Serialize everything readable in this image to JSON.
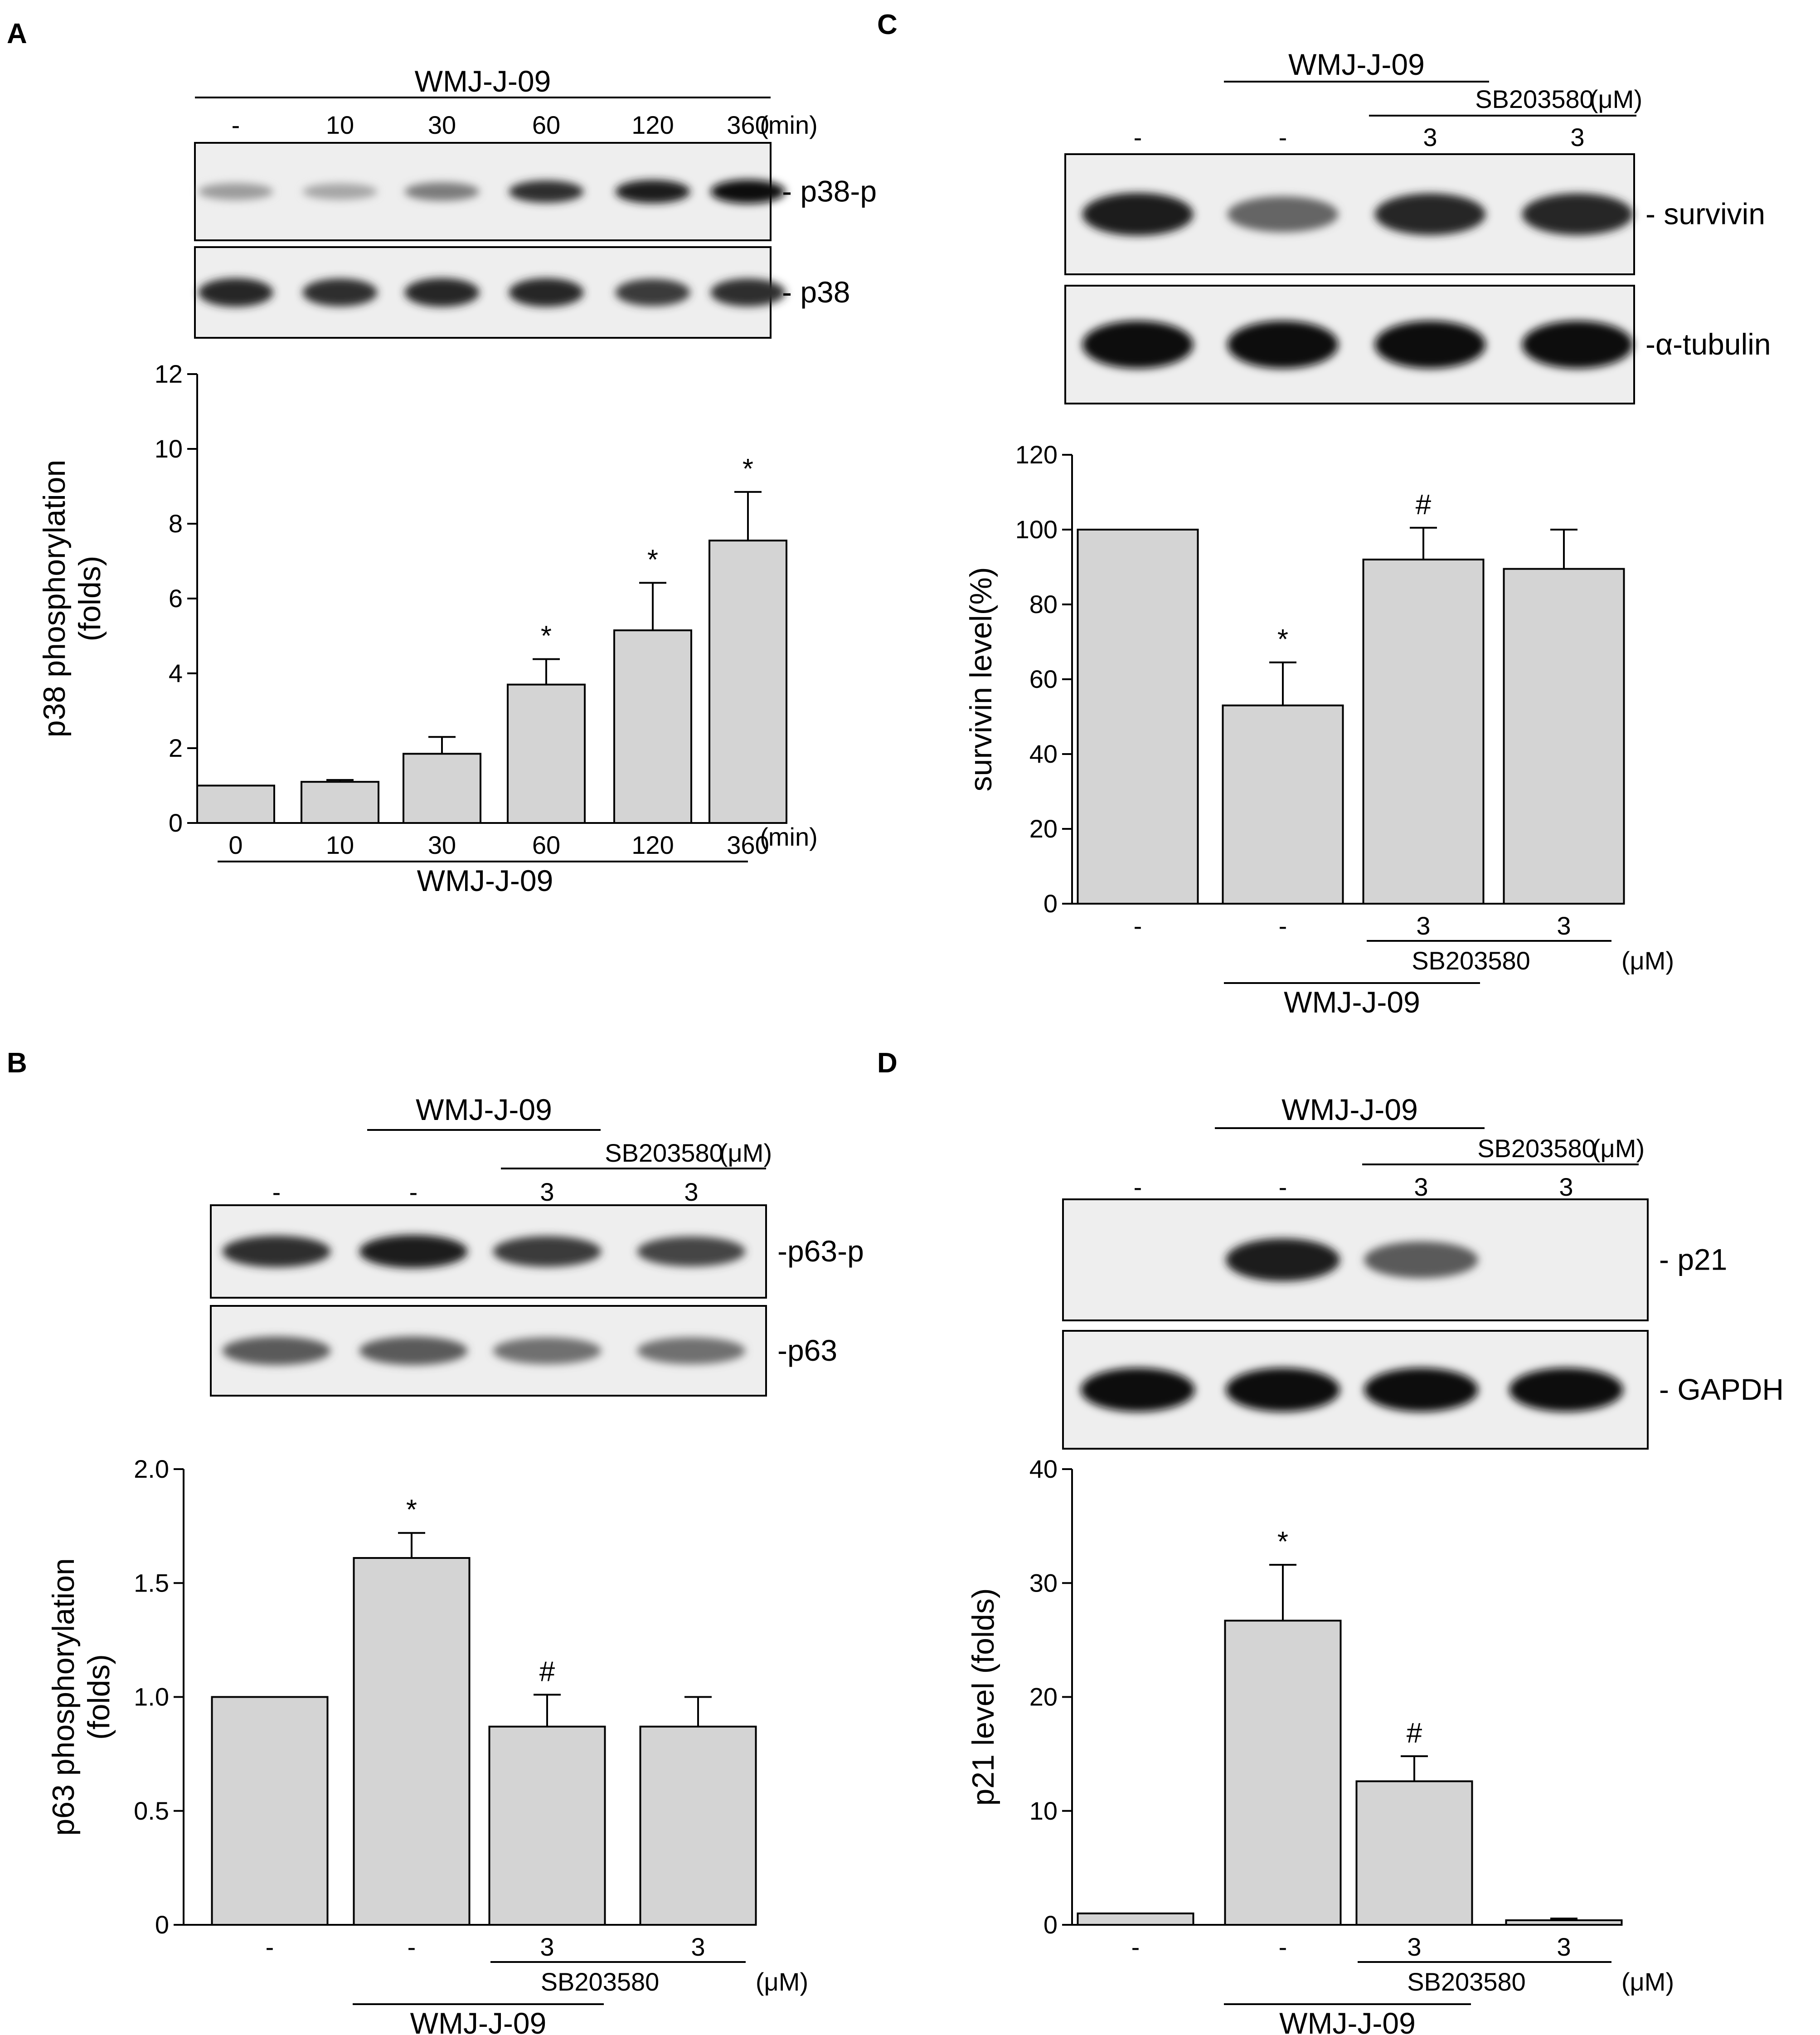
{
  "chart_data": [
    {
      "panel": "A",
      "type": "bar",
      "ylabel": [
        "p38 phosphorylation",
        "(folds)"
      ],
      "ylim": [
        0,
        12
      ],
      "yticks": [
        "0",
        "2",
        "4",
        "6",
        "8",
        "10",
        "12"
      ],
      "categories": [
        "0",
        "10",
        "30",
        "60",
        "120",
        "360"
      ],
      "values": [
        1.0,
        1.1,
        1.85,
        3.7,
        5.15,
        7.55
      ],
      "errors": [
        0,
        0.05,
        0.45,
        0.68,
        1.27,
        1.3
      ],
      "markers": [
        "",
        "",
        "",
        "*",
        "*",
        "*"
      ],
      "unit": "(min)",
      "group_label": "WMJ-J-09",
      "blot": {
        "group_label": "WMJ-J-09",
        "lane_labels": [
          "-",
          "10",
          "30",
          "60",
          "120",
          "360"
        ],
        "unit": "(min)",
        "bands": [
          {
            "label": "- p38-p",
            "intensity": [
              0.35,
              0.3,
              0.5,
              0.85,
              0.95,
              1.0
            ]
          },
          {
            "label": "- p38",
            "intensity": [
              0.9,
              0.85,
              0.9,
              0.9,
              0.8,
              0.85
            ]
          }
        ]
      }
    },
    {
      "panel": "B",
      "type": "bar",
      "ylabel": [
        "p63 phosphorylation",
        "(folds)"
      ],
      "ylim": [
        0,
        2.0
      ],
      "yticks": [
        "0",
        "0.5",
        "1.0",
        "1.5",
        "2.0"
      ],
      "categories": [
        "-",
        "-",
        "3",
        "3"
      ],
      "values": [
        1.0,
        1.61,
        0.87,
        0.87
      ],
      "errors": [
        0,
        0.11,
        0.14,
        0.13
      ],
      "markers": [
        "",
        "*",
        "#",
        ""
      ],
      "sub_label": "SB203580",
      "unit": "(μM)",
      "group_label": "WMJ-J-09",
      "blot": {
        "group_label": "WMJ-J-09",
        "sub_label": "SB203580",
        "unit": "(μM)",
        "lane_labels": [
          "-",
          "-",
          "3",
          "3"
        ],
        "bands": [
          {
            "label": "-p63-p",
            "intensity": [
              0.85,
              0.95,
              0.8,
              0.75
            ]
          },
          {
            "label": "-p63",
            "intensity": [
              0.65,
              0.65,
              0.55,
              0.55
            ]
          }
        ]
      }
    },
    {
      "panel": "C",
      "type": "bar",
      "ylabel": [
        "survivin level(%)"
      ],
      "ylim": [
        0,
        120
      ],
      "yticks": [
        "0",
        "20",
        "40",
        "60",
        "80",
        "100",
        "120"
      ],
      "categories": [
        "-",
        "-",
        "3",
        "3"
      ],
      "values": [
        100,
        53,
        92,
        89.5
      ],
      "errors": [
        0,
        11.5,
        8.5,
        10.5
      ],
      "markers": [
        "",
        "*",
        "#",
        ""
      ],
      "sub_label": "SB203580",
      "unit": "(μM)",
      "group_label": "WMJ-J-09",
      "blot": {
        "group_label": "WMJ-J-09",
        "sub_label": "SB203580",
        "unit": "(μM)",
        "lane_labels": [
          "-",
          "-",
          "3",
          "3"
        ],
        "bands": [
          {
            "label": "- survivin",
            "intensity": [
              0.95,
              0.6,
              0.9,
              0.9
            ]
          },
          {
            "label": "-α-tubulin",
            "intensity": [
              1.0,
              1.0,
              1.0,
              1.0
            ]
          }
        ]
      }
    },
    {
      "panel": "D",
      "type": "bar",
      "ylabel": [
        "p21 level (folds)"
      ],
      "ylim": [
        0,
        40
      ],
      "yticks": [
        "0",
        "10",
        "20",
        "30",
        "40"
      ],
      "categories": [
        "-",
        "-",
        "3",
        "3"
      ],
      "values": [
        1.0,
        26.7,
        12.6,
        0.4
      ],
      "errors": [
        0,
        4.9,
        2.2,
        0.15
      ],
      "markers": [
        "",
        "*",
        "#",
        ""
      ],
      "sub_label": "SB203580",
      "unit": "(μM)",
      "group_label": "WMJ-J-09",
      "blot": {
        "group_label": "WMJ-J-09",
        "sub_label": "SB203580",
        "unit": "(μM)",
        "lane_labels": [
          "-",
          "-",
          "3",
          "3"
        ],
        "bands": [
          {
            "label": "- p21",
            "intensity": [
              0.0,
              0.95,
              0.65,
              0.0
            ]
          },
          {
            "label": "- GAPDH",
            "intensity": [
              1.0,
              1.0,
              1.0,
              1.0
            ]
          }
        ]
      }
    }
  ]
}
